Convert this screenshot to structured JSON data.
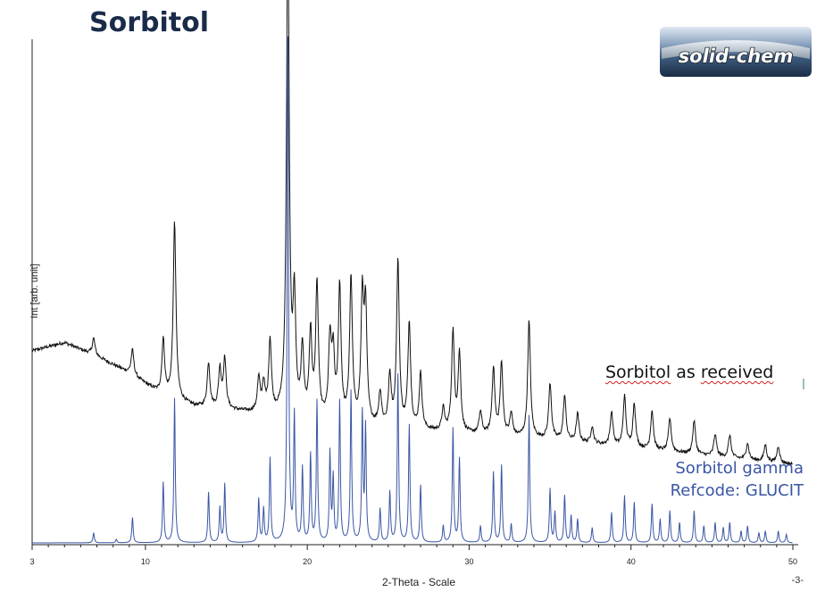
{
  "page": {
    "title": "Sorbitol",
    "page_number": "-3-",
    "logo_text": "solid-chem"
  },
  "labels": {
    "received": "Sorbitol as received",
    "gamma_line1": "Sorbitol gamma",
    "gamma_line2": "Refcode: GLUCIT"
  },
  "chart_data": {
    "type": "line",
    "xlabel": "2-Theta - Scale",
    "ylabel": "Int [arb. unit]",
    "xlim": [
      3,
      50
    ],
    "xticks": [
      3,
      10,
      20,
      30,
      40,
      50
    ],
    "series": [
      {
        "name": "Sorbitol as received",
        "color": "#111111",
        "background": [
          [
            3,
            0.35
          ],
          [
            5,
            0.365
          ],
          [
            7,
            0.34
          ],
          [
            9,
            0.31
          ],
          [
            11,
            0.27
          ],
          [
            13,
            0.25
          ],
          [
            16,
            0.24
          ],
          [
            20,
            0.225
          ],
          [
            25,
            0.21
          ],
          [
            30,
            0.2
          ],
          [
            35,
            0.19
          ],
          [
            40,
            0.175
          ],
          [
            45,
            0.16
          ],
          [
            50,
            0.145
          ]
        ],
        "peaks": [
          [
            6.8,
            0.03
          ],
          [
            9.2,
            0.045
          ],
          [
            11.1,
            0.1
          ],
          [
            11.8,
            0.32
          ],
          [
            13.9,
            0.08
          ],
          [
            14.6,
            0.07
          ],
          [
            14.9,
            0.09
          ],
          [
            17.0,
            0.06
          ],
          [
            17.3,
            0.05
          ],
          [
            17.7,
            0.13
          ],
          [
            18.8,
            0.9
          ],
          [
            19.2,
            0.2
          ],
          [
            19.7,
            0.12
          ],
          [
            20.2,
            0.15
          ],
          [
            20.6,
            0.24
          ],
          [
            21.4,
            0.14
          ],
          [
            21.6,
            0.11
          ],
          [
            22.0,
            0.24
          ],
          [
            22.7,
            0.26
          ],
          [
            23.4,
            0.22
          ],
          [
            23.6,
            0.2
          ],
          [
            24.5,
            0.06
          ],
          [
            25.1,
            0.09
          ],
          [
            25.6,
            0.3
          ],
          [
            26.3,
            0.19
          ],
          [
            27.0,
            0.1
          ],
          [
            28.4,
            0.04
          ],
          [
            29.0,
            0.18
          ],
          [
            29.4,
            0.14
          ],
          [
            30.7,
            0.04
          ],
          [
            31.5,
            0.12
          ],
          [
            32.0,
            0.13
          ],
          [
            32.6,
            0.04
          ],
          [
            33.7,
            0.21
          ],
          [
            35.0,
            0.1
          ],
          [
            35.9,
            0.08
          ],
          [
            36.7,
            0.05
          ],
          [
            37.6,
            0.03
          ],
          [
            38.8,
            0.06
          ],
          [
            39.6,
            0.09
          ],
          [
            40.2,
            0.08
          ],
          [
            41.3,
            0.07
          ],
          [
            42.4,
            0.06
          ],
          [
            43.9,
            0.06
          ],
          [
            45.2,
            0.04
          ],
          [
            46.1,
            0.04
          ],
          [
            47.2,
            0.03
          ],
          [
            48.3,
            0.03
          ],
          [
            49.1,
            0.03
          ]
        ]
      },
      {
        "name": "Sorbitol gamma",
        "color": "#3a56a5",
        "peaks": [
          [
            6.8,
            0.06
          ],
          [
            8.2,
            0.02
          ],
          [
            9.2,
            0.15
          ],
          [
            11.1,
            0.36
          ],
          [
            11.8,
            0.86
          ],
          [
            13.9,
            0.3
          ],
          [
            14.6,
            0.21
          ],
          [
            14.9,
            0.35
          ],
          [
            17.0,
            0.26
          ],
          [
            17.3,
            0.2
          ],
          [
            17.7,
            0.5
          ],
          [
            18.8,
            3.0
          ],
          [
            19.2,
            0.75
          ],
          [
            19.7,
            0.44
          ],
          [
            20.2,
            0.52
          ],
          [
            20.6,
            0.84
          ],
          [
            21.4,
            0.53
          ],
          [
            21.6,
            0.38
          ],
          [
            22.0,
            0.84
          ],
          [
            22.7,
            0.9
          ],
          [
            23.4,
            0.76
          ],
          [
            23.6,
            0.68
          ],
          [
            24.5,
            0.2
          ],
          [
            25.1,
            0.3
          ],
          [
            25.6,
            1.0
          ],
          [
            26.3,
            0.7
          ],
          [
            27.0,
            0.34
          ],
          [
            28.4,
            0.1
          ],
          [
            29.0,
            0.68
          ],
          [
            29.4,
            0.5
          ],
          [
            30.7,
            0.1
          ],
          [
            31.5,
            0.42
          ],
          [
            32.0,
            0.46
          ],
          [
            32.6,
            0.11
          ],
          [
            33.7,
            0.76
          ],
          [
            35.0,
            0.32
          ],
          [
            35.3,
            0.18
          ],
          [
            35.9,
            0.28
          ],
          [
            36.3,
            0.16
          ],
          [
            36.7,
            0.14
          ],
          [
            37.6,
            0.09
          ],
          [
            38.8,
            0.18
          ],
          [
            39.6,
            0.28
          ],
          [
            40.2,
            0.24
          ],
          [
            41.3,
            0.23
          ],
          [
            41.8,
            0.14
          ],
          [
            42.4,
            0.19
          ],
          [
            43.0,
            0.12
          ],
          [
            43.9,
            0.19
          ],
          [
            44.5,
            0.1
          ],
          [
            45.2,
            0.12
          ],
          [
            45.7,
            0.09
          ],
          [
            46.1,
            0.12
          ],
          [
            46.8,
            0.07
          ],
          [
            47.2,
            0.1
          ],
          [
            47.9,
            0.06
          ],
          [
            48.3,
            0.07
          ],
          [
            49.1,
            0.07
          ],
          [
            49.6,
            0.05
          ]
        ]
      }
    ]
  }
}
